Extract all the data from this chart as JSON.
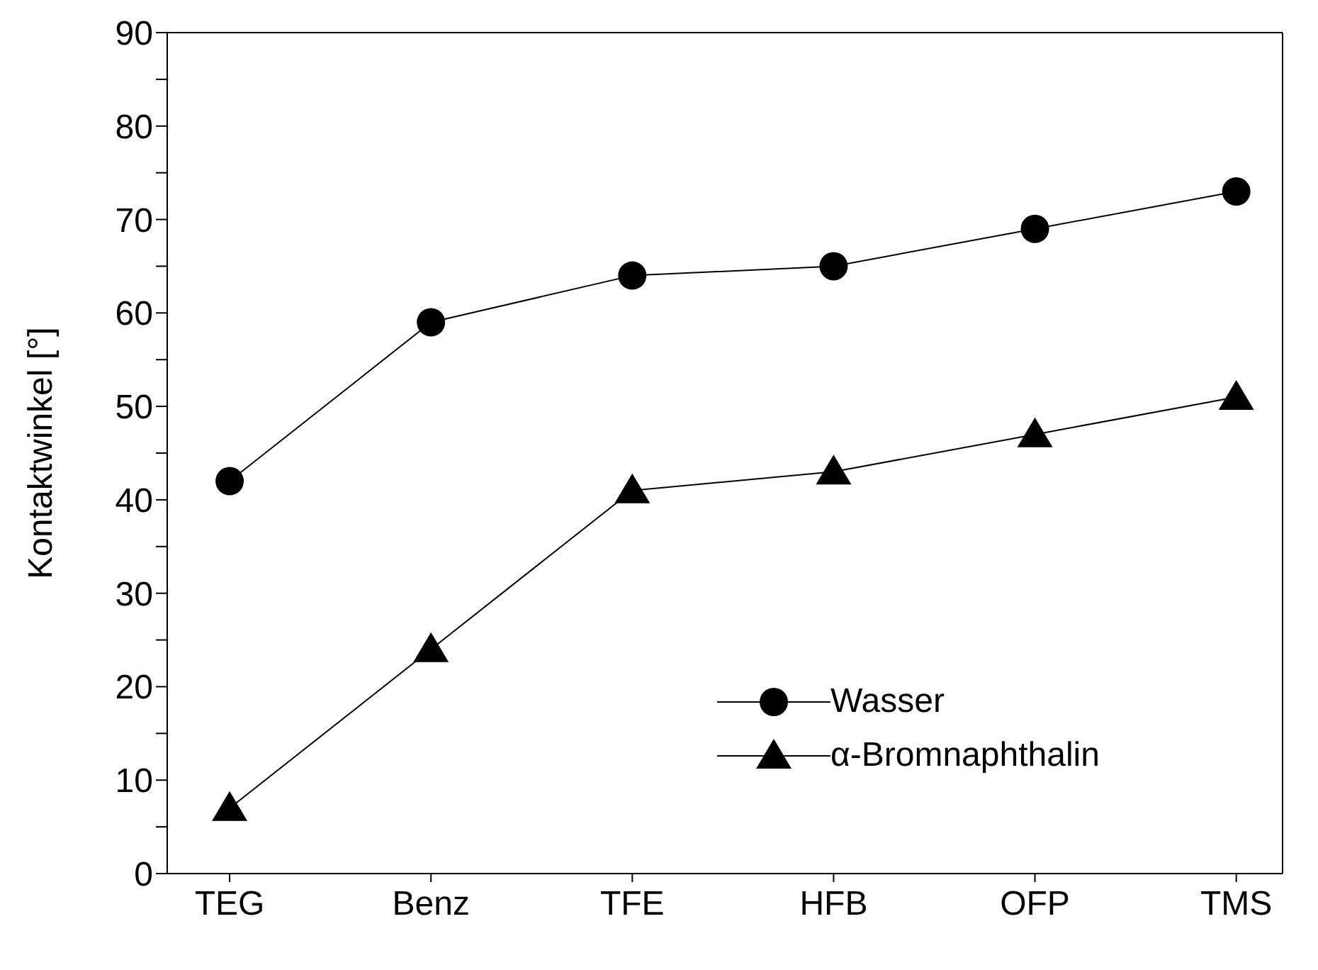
{
  "chart_data": {
    "type": "line",
    "ylabel": "Kontaktwinkel [°]",
    "categories": [
      "TEG",
      "Benz",
      "TFE",
      "HFB",
      "OFP",
      "TMS"
    ],
    "series": [
      {
        "name": "Wasser",
        "color": "#000000",
        "marker": "circle",
        "values": [
          42,
          59,
          64,
          65,
          69,
          73
        ]
      },
      {
        "name": "α-Bromnaphthalin",
        "color": "#000000",
        "marker": "triangle",
        "values": [
          7,
          24,
          41,
          43,
          47,
          51
        ]
      }
    ],
    "ylim": [
      0,
      90
    ],
    "yticks": [
      0,
      {
        "value": 5,
        "label": null
      },
      10,
      {
        "value": 15,
        "label": null
      },
      20,
      {
        "value": 25,
        "label": null
      },
      30,
      {
        "value": 35,
        "label": null
      },
      40,
      {
        "value": 45,
        "label": null
      },
      50,
      {
        "value": 55,
        "label": null
      },
      60,
      {
        "value": 65,
        "label": null
      },
      70,
      {
        "value": 75,
        "label": null
      },
      80,
      {
        "value": 85,
        "label": null
      },
      90
    ],
    "grid": false,
    "legend": "bottom right",
    "line_style": "solid"
  }
}
